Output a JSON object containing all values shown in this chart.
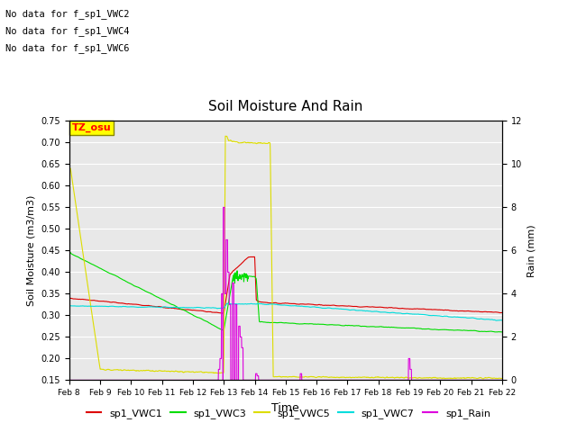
{
  "title": "Soil Moisture And Rain",
  "xlabel": "Time",
  "ylabel_left": "Soil Moisture (m3/m3)",
  "ylabel_right": "Rain (mm)",
  "no_data_text": [
    "No data for f_sp1_VWC2",
    "No data for f_sp1_VWC4",
    "No data for f_sp1_VWC6"
  ],
  "tz_label": "TZ_osu",
  "ylim_left": [
    0.15,
    0.75
  ],
  "ylim_right": [
    0,
    12
  ],
  "yticks_left": [
    0.15,
    0.2,
    0.25,
    0.3,
    0.35,
    0.4,
    0.45,
    0.5,
    0.55,
    0.6,
    0.65,
    0.7,
    0.75
  ],
  "yticks_right": [
    0,
    2,
    4,
    6,
    8,
    10,
    12
  ],
  "xtick_labels": [
    "Feb 8",
    "Feb 9",
    "Feb 10",
    "Feb 11",
    "Feb 12",
    "Feb 13",
    "Feb 14",
    "Feb 15",
    "Feb 16",
    "Feb 17",
    "Feb 18",
    "Feb 19",
    "Feb 20",
    "Feb 21",
    "Feb 22"
  ],
  "colors": {
    "VWC1": "#dd0000",
    "VWC3": "#00dd00",
    "VWC5": "#dddd00",
    "VWC7": "#00dddd",
    "Rain": "#dd00dd"
  },
  "background_color": "#e8e8e8",
  "figsize": [
    6.4,
    4.8
  ],
  "dpi": 100
}
